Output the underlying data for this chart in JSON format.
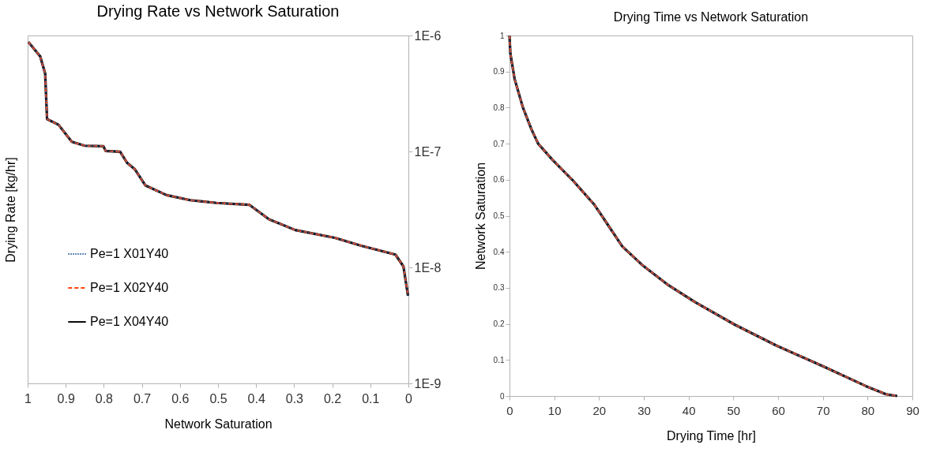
{
  "chart_data": [
    {
      "type": "line",
      "title": "Drying Rate vs Network Saturation",
      "xlabel": "Network Saturation",
      "ylabel": "Drying Rate [kg/hr]",
      "log": "y",
      "grid": false,
      "legend": "left",
      "marker": "none",
      "x": [
        0.998,
        0.967,
        0.954,
        0.949,
        0.919,
        0.884,
        0.85,
        0.801,
        0.795,
        0.757,
        0.739,
        0.718,
        0.691,
        0.635,
        0.573,
        0.504,
        0.418,
        0.366,
        0.297,
        0.193,
        0.124,
        0.034,
        0.013,
        0.001
      ],
      "xlim": [
        1,
        0
      ],
      "xticks": [
        1,
        0.9,
        0.8,
        0.7,
        0.6,
        0.5,
        0.4,
        0.3,
        0.2,
        0.1,
        0
      ],
      "ylim": [
        1e-09,
        1e-06
      ],
      "yticks": [
        {
          "value": 1e-09,
          "label": "1E-9"
        },
        {
          "value": 1e-08,
          "label": "1E-8"
        },
        {
          "value": 1e-07,
          "label": "1E-7"
        },
        {
          "value": 1e-06,
          "label": "1E-6"
        }
      ],
      "series": [
        {
          "name": "Pe=1 X01Y40",
          "color": "#3465a4",
          "line_style": "dotted",
          "values": [
            8.8e-07,
            6.6e-07,
            4.7e-07,
            1.9e-07,
            1.7e-07,
            1.21e-07,
            1.12e-07,
            1.11e-07,
            1.01e-07,
            9.95e-08,
            8e-08,
            7e-08,
            5.1e-08,
            4.2e-08,
            3.8e-08,
            3.6e-08,
            3.47e-08,
            2.6e-08,
            2.1e-08,
            1.8e-08,
            1.54e-08,
            1.29e-08,
            1.02e-08,
            5.7e-09
          ]
        },
        {
          "name": "Pe=1 X02Y40",
          "color": "#ff420e",
          "line_style": "dashed",
          "values": [
            8.8e-07,
            6.6e-07,
            4.7e-07,
            1.9e-07,
            1.7e-07,
            1.21e-07,
            1.12e-07,
            1.11e-07,
            1.01e-07,
            9.95e-08,
            8e-08,
            7e-08,
            5.1e-08,
            4.2e-08,
            3.8e-08,
            3.6e-08,
            3.47e-08,
            2.6e-08,
            2.1e-08,
            1.8e-08,
            1.54e-08,
            1.29e-08,
            1.02e-08,
            5.7e-09
          ]
        },
        {
          "name": "Pe=1 X04Y40",
          "color": "#000000",
          "line_style": "solid",
          "values": [
            8.8e-07,
            6.6e-07,
            4.7e-07,
            1.9e-07,
            1.7e-07,
            1.21e-07,
            1.12e-07,
            1.11e-07,
            1.01e-07,
            9.95e-08,
            8e-08,
            7e-08,
            5.1e-08,
            4.2e-08,
            3.8e-08,
            3.6e-08,
            3.47e-08,
            2.6e-08,
            2.1e-08,
            1.8e-08,
            1.54e-08,
            1.29e-08,
            1.02e-08,
            5.7e-09
          ]
        }
      ]
    },
    {
      "type": "line",
      "title": "Drying Time vs Network Saturation",
      "xlabel": "Drying Time [hr]",
      "ylabel": "Network Saturation",
      "grid": false,
      "legend": false,
      "marker": "none",
      "x": [
        0,
        0.19,
        1.13,
        3.0,
        4.9,
        6.4,
        9.6,
        14.0,
        19.0,
        25.2,
        29.6,
        35.2,
        41.5,
        50.3,
        59.6,
        70.3,
        79.7,
        84.1,
        86.6
      ],
      "xlim": [
        0,
        90
      ],
      "xticks": [
        0,
        10,
        20,
        30,
        40,
        50,
        60,
        70,
        80,
        90
      ],
      "ylim": [
        0,
        1
      ],
      "yticks": [
        0,
        0.1,
        0.2,
        0.3,
        0.4,
        0.5,
        0.6,
        0.7,
        0.8,
        0.9,
        1
      ],
      "series": [
        {
          "color": "#3465a4",
          "line_style": "dotted",
          "values": [
            1,
            0.95,
            0.88,
            0.8,
            0.74,
            0.7,
            0.655,
            0.6,
            0.53,
            0.415,
            0.364,
            0.31,
            0.26,
            0.198,
            0.14,
            0.081,
            0.027,
            0.005,
            0
          ]
        },
        {
          "color": "#ff420e",
          "line_style": "dashed",
          "values": [
            1,
            0.95,
            0.88,
            0.8,
            0.74,
            0.7,
            0.655,
            0.6,
            0.53,
            0.415,
            0.364,
            0.31,
            0.26,
            0.198,
            0.14,
            0.081,
            0.027,
            0.005,
            0
          ]
        },
        {
          "color": "#000000",
          "line_style": "solid",
          "values": [
            1,
            0.95,
            0.88,
            0.8,
            0.74,
            0.7,
            0.655,
            0.6,
            0.53,
            0.415,
            0.364,
            0.31,
            0.26,
            0.198,
            0.14,
            0.081,
            0.027,
            0.005,
            0
          ]
        }
      ]
    }
  ]
}
